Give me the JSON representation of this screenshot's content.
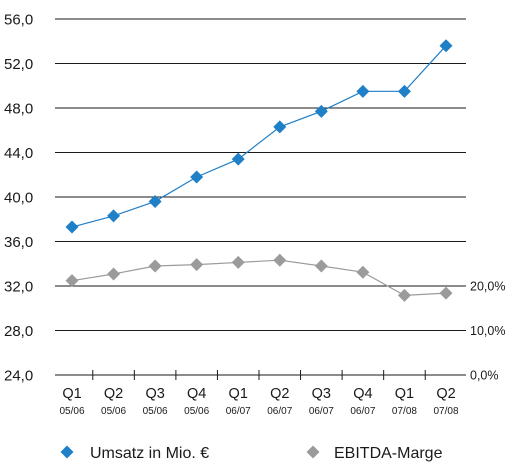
{
  "chart_data": {
    "type": "line",
    "categories": [
      {
        "quarter": "Q1",
        "period": "05/06"
      },
      {
        "quarter": "Q2",
        "period": "05/06"
      },
      {
        "quarter": "Q3",
        "period": "05/06"
      },
      {
        "quarter": "Q4",
        "period": "05/06"
      },
      {
        "quarter": "Q1",
        "period": "06/07"
      },
      {
        "quarter": "Q2",
        "period": "06/07"
      },
      {
        "quarter": "Q3",
        "period": "06/07"
      },
      {
        "quarter": "Q4",
        "period": "06/07"
      },
      {
        "quarter": "Q1",
        "period": "07/08"
      },
      {
        "quarter": "Q2",
        "period": "07/08"
      }
    ],
    "y_axis": {
      "ylim": [
        24,
        56
      ],
      "ticks": [
        24,
        28,
        32,
        36,
        40,
        44,
        48,
        52,
        56
      ],
      "tick_labels": [
        "24,0",
        "28,0",
        "32,0",
        "36,0",
        "40,0",
        "44,0",
        "48,0",
        "52,0",
        "56,0"
      ]
    },
    "y2_axis": {
      "ylim": [
        0,
        80
      ],
      "ticks": [
        0,
        10,
        20
      ],
      "tick_labels": [
        "0,0%",
        "10,0%",
        "20,0%"
      ]
    },
    "grid": true,
    "legend_position": "bottom",
    "series": [
      {
        "name": "Umsatz in Mio. €",
        "axis": "left",
        "color": "#1f7fc7",
        "values": [
          37.3,
          38.3,
          39.6,
          41.8,
          43.4,
          46.3,
          47.7,
          49.5,
          49.5,
          53.6
        ]
      },
      {
        "name": "EBITDA-Marge",
        "axis": "right",
        "color": "#9b9b9b",
        "values": [
          21.2,
          22.7,
          24.5,
          24.8,
          25.3,
          25.8,
          24.5,
          23.1,
          17.9,
          18.4
        ]
      }
    ]
  }
}
